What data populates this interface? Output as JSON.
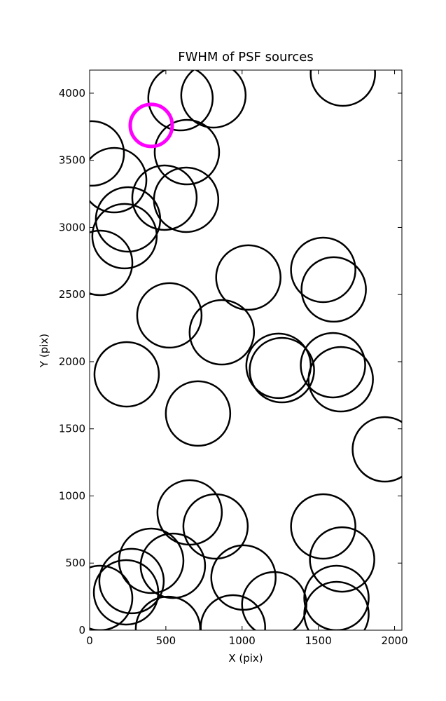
{
  "chart_data": {
    "type": "scatter",
    "title": "FWHM of PSF sources",
    "x_label": "X (pix)",
    "y_label": "Y (pix)",
    "xlim": [
      0,
      2048
    ],
    "ylim": [
      0,
      4172
    ],
    "xticks": [
      0,
      500,
      1000,
      1500,
      2000
    ],
    "yticks": [
      0,
      500,
      1000,
      1500,
      2000,
      2500,
      3000,
      3500,
      4000
    ],
    "color": "#000000",
    "x": [
      596,
      812,
      1661,
      638,
      14,
      161,
      491,
      633,
      252,
      229,
      69,
      1041,
      1532,
      1601,
      523,
      867,
      1239,
      1261,
      1596,
      1647,
      243,
      711,
      1936,
      656,
      826,
      1532,
      1656,
      404,
      546,
      1009,
      275,
      69,
      239,
      1211,
      1619,
      1619,
      514,
      940
    ],
    "y": [
      3963,
      3984,
      4146,
      3561,
      3551,
      3352,
      3222,
      3206,
      3060,
      2935,
      2736,
      2627,
      2684,
      2538,
      2345,
      2219,
      1969,
      1937,
      1974,
      1869,
      1906,
      1614,
      1347,
      877,
      773,
      773,
      527,
      517,
      480,
      392,
      366,
      240,
      282,
      193,
      240,
      120,
      10,
      21
    ],
    "highlight": {
      "x": 404,
      "y": 3760,
      "color": "#ff00ff"
    }
  }
}
